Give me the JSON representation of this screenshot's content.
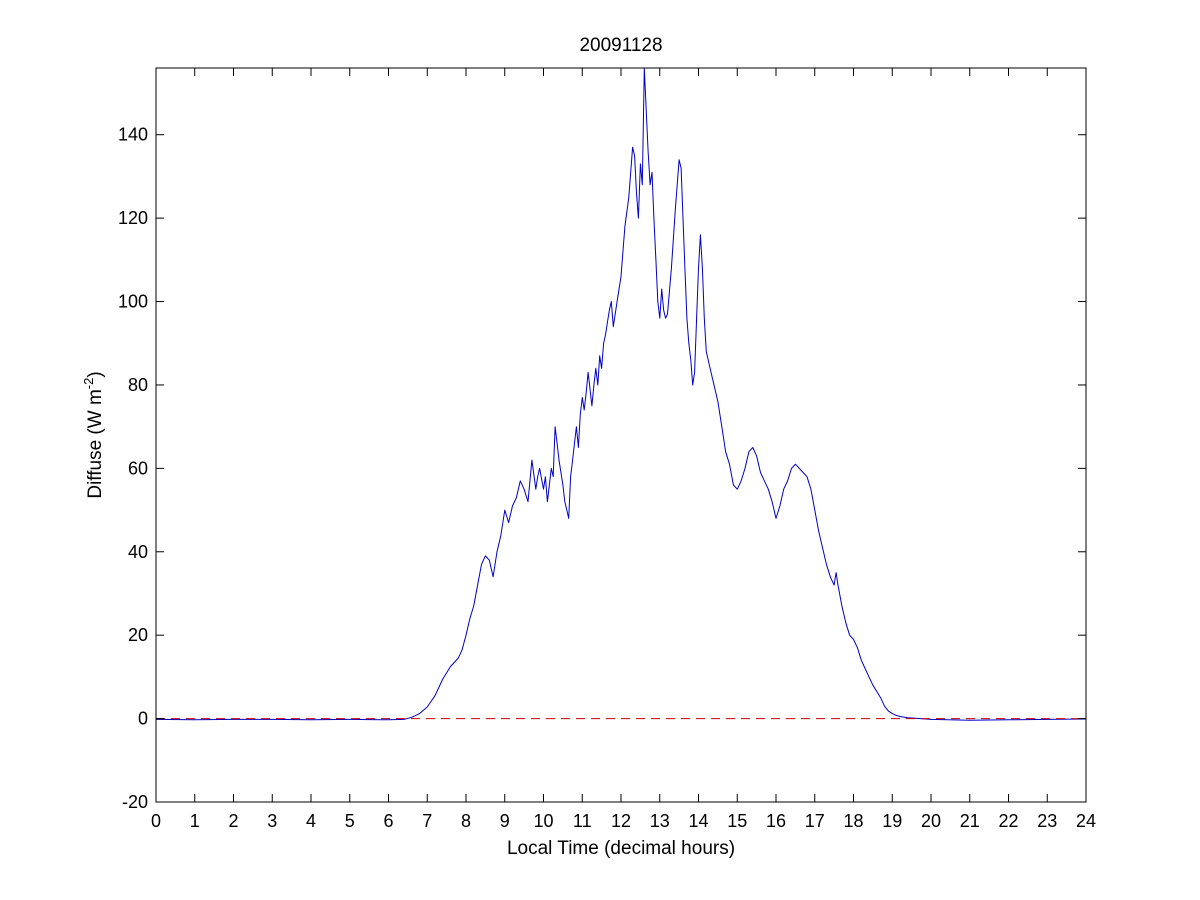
{
  "chart_data": {
    "type": "line",
    "title": "20091128",
    "xlabel": "Local Time (decimal hours)",
    "ylabel_main": "Diffuse (W m",
    "ylabel_sup": "-2",
    "ylabel_close": ")",
    "xlim": [
      0,
      24
    ],
    "ylim": [
      -20,
      156
    ],
    "xticks": [
      0,
      1,
      2,
      3,
      4,
      5,
      6,
      7,
      8,
      9,
      10,
      11,
      12,
      13,
      14,
      15,
      16,
      17,
      18,
      19,
      20,
      21,
      22,
      23,
      24
    ],
    "yticks": [
      -20,
      0,
      20,
      40,
      60,
      80,
      100,
      120,
      140
    ],
    "grid": false,
    "series": [
      {
        "color": "#0000c8",
        "style": "solid",
        "points": [
          [
            0,
            -0.2
          ],
          [
            1,
            -0.3
          ],
          [
            2,
            -0.2
          ],
          [
            3,
            -0.2
          ],
          [
            4,
            -0.3
          ],
          [
            5,
            -0.2
          ],
          [
            6,
            -0.3
          ],
          [
            6.4,
            -0.2
          ],
          [
            6.6,
            0.3
          ],
          [
            6.8,
            1.2
          ],
          [
            7.0,
            2.8
          ],
          [
            7.2,
            5.5
          ],
          [
            7.4,
            9.5
          ],
          [
            7.6,
            12.5
          ],
          [
            7.8,
            14.5
          ],
          [
            7.9,
            16.5
          ],
          [
            8.0,
            20
          ],
          [
            8.1,
            24
          ],
          [
            8.2,
            27
          ],
          [
            8.3,
            32
          ],
          [
            8.4,
            37
          ],
          [
            8.5,
            39
          ],
          [
            8.6,
            38
          ],
          [
            8.7,
            34
          ],
          [
            8.8,
            40
          ],
          [
            8.9,
            44
          ],
          [
            9.0,
            50
          ],
          [
            9.1,
            47
          ],
          [
            9.2,
            51
          ],
          [
            9.3,
            53
          ],
          [
            9.4,
            57
          ],
          [
            9.5,
            55
          ],
          [
            9.6,
            52
          ],
          [
            9.7,
            62
          ],
          [
            9.8,
            55
          ],
          [
            9.85,
            58
          ],
          [
            9.9,
            60
          ],
          [
            10.0,
            55
          ],
          [
            10.05,
            58
          ],
          [
            10.1,
            52
          ],
          [
            10.2,
            60
          ],
          [
            10.25,
            58
          ],
          [
            10.3,
            70
          ],
          [
            10.35,
            66
          ],
          [
            10.4,
            62
          ],
          [
            10.5,
            56
          ],
          [
            10.55,
            52
          ],
          [
            10.6,
            50
          ],
          [
            10.65,
            48
          ],
          [
            10.7,
            58
          ],
          [
            10.75,
            62
          ],
          [
            10.8,
            66
          ],
          [
            10.85,
            70
          ],
          [
            10.9,
            65
          ],
          [
            10.95,
            73
          ],
          [
            11.0,
            77
          ],
          [
            11.05,
            74
          ],
          [
            11.1,
            78
          ],
          [
            11.15,
            83
          ],
          [
            11.2,
            79
          ],
          [
            11.25,
            75
          ],
          [
            11.3,
            80
          ],
          [
            11.35,
            84
          ],
          [
            11.4,
            80
          ],
          [
            11.45,
            87
          ],
          [
            11.5,
            84
          ],
          [
            11.55,
            90
          ],
          [
            11.6,
            92
          ],
          [
            11.65,
            95
          ],
          [
            11.7,
            98
          ],
          [
            11.75,
            100
          ],
          [
            11.8,
            94
          ],
          [
            11.9,
            100
          ],
          [
            12.0,
            106
          ],
          [
            12.1,
            118
          ],
          [
            12.2,
            125
          ],
          [
            12.3,
            137
          ],
          [
            12.35,
            135
          ],
          [
            12.4,
            126
          ],
          [
            12.45,
            120
          ],
          [
            12.5,
            133
          ],
          [
            12.55,
            128
          ],
          [
            12.6,
            156
          ],
          [
            12.65,
            146
          ],
          [
            12.7,
            136
          ],
          [
            12.75,
            128
          ],
          [
            12.8,
            131
          ],
          [
            12.85,
            120
          ],
          [
            12.9,
            110
          ],
          [
            12.95,
            100
          ],
          [
            13.0,
            96
          ],
          [
            13.05,
            103
          ],
          [
            13.1,
            98
          ],
          [
            13.15,
            96
          ],
          [
            13.2,
            97
          ],
          [
            13.3,
            108
          ],
          [
            13.4,
            122
          ],
          [
            13.5,
            134
          ],
          [
            13.55,
            132
          ],
          [
            13.6,
            120
          ],
          [
            13.65,
            108
          ],
          [
            13.7,
            96
          ],
          [
            13.75,
            90
          ],
          [
            13.8,
            86
          ],
          [
            13.85,
            80
          ],
          [
            13.9,
            83
          ],
          [
            13.95,
            96
          ],
          [
            14.0,
            108
          ],
          [
            14.05,
            116
          ],
          [
            14.1,
            108
          ],
          [
            14.15,
            96
          ],
          [
            14.2,
            88
          ],
          [
            14.3,
            84
          ],
          [
            14.4,
            80
          ],
          [
            14.5,
            76
          ],
          [
            14.6,
            70
          ],
          [
            14.7,
            64
          ],
          [
            14.8,
            61
          ],
          [
            14.9,
            56
          ],
          [
            15.0,
            55
          ],
          [
            15.1,
            57
          ],
          [
            15.2,
            60
          ],
          [
            15.3,
            64
          ],
          [
            15.4,
            65
          ],
          [
            15.5,
            63
          ],
          [
            15.6,
            59
          ],
          [
            15.7,
            57
          ],
          [
            15.8,
            55
          ],
          [
            15.9,
            52
          ],
          [
            16.0,
            48
          ],
          [
            16.1,
            51
          ],
          [
            16.2,
            55
          ],
          [
            16.3,
            57
          ],
          [
            16.4,
            60
          ],
          [
            16.5,
            61
          ],
          [
            16.6,
            60
          ],
          [
            16.7,
            59
          ],
          [
            16.8,
            58
          ],
          [
            16.9,
            55
          ],
          [
            17.0,
            50
          ],
          [
            17.1,
            45
          ],
          [
            17.2,
            41
          ],
          [
            17.3,
            37
          ],
          [
            17.4,
            34
          ],
          [
            17.5,
            32
          ],
          [
            17.55,
            35
          ],
          [
            17.6,
            32
          ],
          [
            17.7,
            27
          ],
          [
            17.8,
            23
          ],
          [
            17.9,
            20
          ],
          [
            18.0,
            19
          ],
          [
            18.1,
            17
          ],
          [
            18.2,
            14
          ],
          [
            18.3,
            12
          ],
          [
            18.4,
            10
          ],
          [
            18.5,
            8
          ],
          [
            18.6,
            6.5
          ],
          [
            18.7,
            5
          ],
          [
            18.8,
            3
          ],
          [
            18.9,
            1.8
          ],
          [
            19.0,
            1.2
          ],
          [
            19.1,
            0.8
          ],
          [
            19.2,
            0.5
          ],
          [
            19.4,
            0.2
          ],
          [
            19.6,
            0.1
          ],
          [
            20,
            -0.2
          ],
          [
            21,
            -0.4
          ],
          [
            22,
            -0.3
          ],
          [
            23,
            -0.2
          ],
          [
            24,
            -0.1
          ]
        ]
      },
      {
        "color": "#c80000",
        "style": "dashed",
        "points": [
          [
            0,
            0
          ],
          [
            24,
            0
          ]
        ]
      }
    ]
  }
}
